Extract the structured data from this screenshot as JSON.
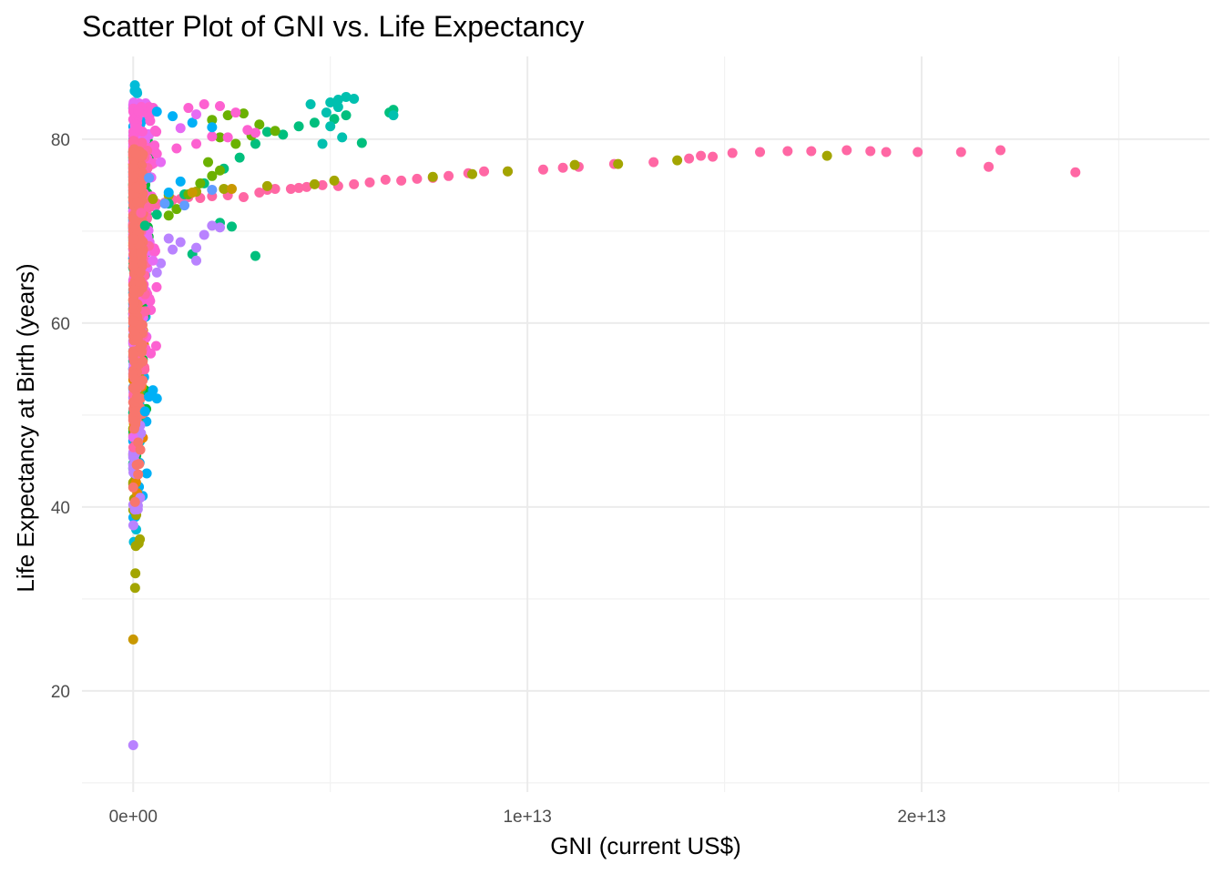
{
  "chart_data": {
    "type": "scatter",
    "title": "Scatter Plot of GNI vs. Life Expectancy",
    "xlabel": "GNI (current US$)",
    "ylabel": "Life Expectancy at Birth (years)",
    "xlim": [
      -1300000000000.0,
      27300000000000.0
    ],
    "ylim": [
      9,
      89
    ],
    "x_ticks": [
      0,
      10000000000000,
      20000000000000
    ],
    "x_tick_labels": [
      "0e+00",
      "1e+13",
      "2e+13"
    ],
    "x_minor_ticks": [
      5000000000000,
      15000000000000,
      25000000000000
    ],
    "y_ticks": [
      20,
      40,
      60,
      80
    ],
    "y_tick_labels": [
      "20",
      "40",
      "60",
      "80"
    ],
    "y_minor_ticks": [
      10,
      30,
      50,
      70
    ],
    "grid": true,
    "legend": "none",
    "colors": [
      "#F8766D",
      "#E58700",
      "#C99800",
      "#A3A500",
      "#6BB100",
      "#00BA38",
      "#00BF7D",
      "#00C0AF",
      "#00BCD8",
      "#00B0F6",
      "#619CFF",
      "#B983FF",
      "#E76BF3",
      "#FD61D1",
      "#FF67A4"
    ],
    "series": [
      {
        "color": "#FF67A4",
        "points": [
          [
            200000000000.0,
            72.0
          ],
          [
            400000000000.0,
            72.6
          ],
          [
            600000000000.0,
            73.0
          ],
          [
            800000000000.0,
            73.1
          ],
          [
            1000000000000.0,
            73.4
          ],
          [
            1200000000000.0,
            73.5
          ],
          [
            1400000000000.0,
            73.7
          ],
          [
            1700000000000.0,
            73.6
          ],
          [
            2000000000000.0,
            73.8
          ],
          [
            2400000000000.0,
            73.9
          ],
          [
            2800000000000.0,
            73.7
          ],
          [
            3200000000000.0,
            74.2
          ],
          [
            3400000000000.0,
            74.5
          ],
          [
            3600000000000.0,
            74.6
          ],
          [
            4000000000000.0,
            74.6
          ],
          [
            4200000000000.0,
            74.7
          ],
          [
            4400000000000.0,
            74.8
          ],
          [
            4800000000000.0,
            75.0
          ],
          [
            5200000000000.0,
            74.9
          ],
          [
            5600000000000.0,
            75.1
          ],
          [
            6000000000000.0,
            75.3
          ],
          [
            6400000000000.0,
            75.6
          ],
          [
            6800000000000.0,
            75.5
          ],
          [
            7200000000000.0,
            75.7
          ],
          [
            7600000000000.0,
            75.8
          ],
          [
            8000000000000.0,
            76.0
          ],
          [
            8500000000000.0,
            76.3
          ],
          [
            8900000000000.0,
            76.5
          ],
          [
            9500000000000.0,
            76.5
          ],
          [
            10400000000000.0,
            76.7
          ],
          [
            10900000000000.0,
            76.9
          ],
          [
            11300000000000.0,
            77.0
          ],
          [
            12200000000000.0,
            77.3
          ],
          [
            13200000000000.0,
            77.5
          ],
          [
            14100000000000.0,
            77.9
          ],
          [
            14400000000000.0,
            78.2
          ],
          [
            14700000000000.0,
            78.1
          ],
          [
            15200000000000.0,
            78.5
          ],
          [
            15900000000000.0,
            78.6
          ],
          [
            16600000000000.0,
            78.7
          ],
          [
            17200000000000.0,
            78.7
          ],
          [
            18100000000000.0,
            78.8
          ],
          [
            18700000000000.0,
            78.7
          ],
          [
            19100000000000.0,
            78.6
          ],
          [
            19900000000000.0,
            78.6
          ],
          [
            21000000000000.0,
            78.6
          ],
          [
            21700000000000.0,
            77.0
          ],
          [
            22000000000000.0,
            78.8
          ],
          [
            23900000000000.0,
            76.4
          ]
        ]
      },
      {
        "color": "#A3A500",
        "points": [
          [
            500000000000.0,
            73.5
          ],
          [
            900000000000.0,
            73.9
          ],
          [
            1600000000000.0,
            74.3
          ],
          [
            2300000000000.0,
            74.6
          ],
          [
            3400000000000.0,
            74.9
          ],
          [
            4600000000000.0,
            75.1
          ],
          [
            5100000000000.0,
            75.5
          ],
          [
            7600000000000.0,
            75.9
          ],
          [
            8600000000000.0,
            76.2
          ],
          [
            9500000000000.0,
            76.5
          ],
          [
            11200000000000.0,
            77.2
          ],
          [
            12300000000000.0,
            77.3
          ],
          [
            13800000000000.0,
            77.7
          ],
          [
            17600000000000.0,
            78.2
          ]
        ]
      },
      {
        "color": "#00BF7D",
        "points": [
          [
            300000000000.0,
            70.6
          ],
          [
            600000000000.0,
            71.8
          ],
          [
            900000000000.0,
            73.0
          ],
          [
            1300000000000.0,
            74.0
          ],
          [
            1800000000000.0,
            75.2
          ],
          [
            2300000000000.0,
            76.8
          ],
          [
            2700000000000.0,
            78.0
          ],
          [
            3100000000000.0,
            79.5
          ],
          [
            3400000000000.0,
            80.8
          ],
          [
            3800000000000.0,
            80.5
          ],
          [
            4200000000000.0,
            81.4
          ],
          [
            4600000000000.0,
            81.8
          ],
          [
            5100000000000.0,
            82.2
          ],
          [
            5400000000000.0,
            82.6
          ],
          [
            5800000000000.0,
            79.6
          ],
          [
            6500000000000.0,
            82.9
          ],
          [
            6600000000000.0,
            83.2
          ],
          [
            2200000000000.0,
            70.9
          ],
          [
            2500000000000.0,
            70.5
          ],
          [
            3100000000000.0,
            67.3
          ],
          [
            1500000000000.0,
            67.5
          ]
        ]
      },
      {
        "color": "#00C0AF",
        "points": [
          [
            4500000000000.0,
            83.8
          ],
          [
            5000000000000.0,
            84.0
          ],
          [
            5200000000000.0,
            84.3
          ],
          [
            5400000000000.0,
            84.6
          ],
          [
            5600000000000.0,
            84.4
          ],
          [
            5200000000000.0,
            83.5
          ],
          [
            4900000000000.0,
            82.9
          ],
          [
            6600000000000.0,
            82.6
          ],
          [
            4800000000000.0,
            79.5
          ],
          [
            5300000000000.0,
            80.2
          ],
          [
            5000000000000.0,
            81.4
          ]
        ]
      },
      {
        "color": "#6BB100",
        "points": [
          [
            2000000000000.0,
            82.1
          ],
          [
            2400000000000.0,
            82.6
          ],
          [
            2800000000000.0,
            82.8
          ],
          [
            3200000000000.0,
            81.6
          ],
          [
            3600000000000.0,
            80.9
          ],
          [
            3000000000000.0,
            80.4
          ],
          [
            2200000000000.0,
            80.2
          ],
          [
            2600000000000.0,
            79.5
          ],
          [
            1900000000000.0,
            77.5
          ],
          [
            2200000000000.0,
            76.6
          ],
          [
            1700000000000.0,
            75.2
          ],
          [
            2000000000000.0,
            76.0
          ],
          [
            1400000000000.0,
            74.0
          ],
          [
            1100000000000.0,
            72.4
          ],
          [
            900000000000.0,
            71.7
          ]
        ]
      },
      {
        "color": "#FD61D1",
        "points": [
          [
            1400000000000.0,
            83.4
          ],
          [
            1800000000000.0,
            83.8
          ],
          [
            2200000000000.0,
            83.6
          ],
          [
            2600000000000.0,
            82.9
          ],
          [
            2900000000000.0,
            81.0
          ],
          [
            3100000000000.0,
            80.7
          ],
          [
            2400000000000.0,
            80.2
          ],
          [
            2000000000000.0,
            80.3
          ],
          [
            1600000000000.0,
            79.5
          ],
          [
            1100000000000.0,
            79.0
          ],
          [
            600000000000.0,
            78.4
          ]
        ]
      },
      {
        "color": "#00B0F6",
        "points": [
          [
            600000000000.0,
            83.0
          ],
          [
            1000000000000.0,
            82.5
          ],
          [
            1500000000000.0,
            81.8
          ],
          [
            2000000000000.0,
            81.3
          ],
          [
            1200000000000.0,
            75.4
          ],
          [
            900000000000.0,
            74.2
          ],
          [
            400000000000.0,
            52.0
          ],
          [
            500000000000.0,
            52.7
          ],
          [
            600000000000.0,
            51.8
          ],
          [
            300000000000.0,
            50.4
          ]
        ]
      },
      {
        "color": "#619CFF",
        "points": [
          [
            400000000000.0,
            75.8
          ],
          [
            800000000000.0,
            73.0
          ],
          [
            1300000000000.0,
            72.8
          ],
          [
            2000000000000.0,
            74.5
          ]
        ]
      },
      {
        "color": "#B983FF",
        "points": [
          [
            2000000000000.0,
            70.6
          ],
          [
            2200000000000.0,
            70.4
          ],
          [
            1800000000000.0,
            69.6
          ],
          [
            1600000000000.0,
            68.2
          ],
          [
            1200000000000.0,
            68.8
          ],
          [
            900000000000.0,
            69.2
          ],
          [
            700000000000.0,
            66.5
          ],
          [
            1000000000000.0,
            68.0
          ],
          [
            1600000000000.0,
            66.8
          ],
          [
            600000000000.0,
            65.5
          ],
          [
            0,
            14.1
          ]
        ]
      },
      {
        "color": "#E76BF3",
        "points": [
          [
            1600000000000.0,
            82.7
          ],
          [
            1200000000000.0,
            81.2
          ],
          [
            700000000000.0,
            77.5
          ],
          [
            500000000000.0,
            66.8
          ]
        ]
      },
      {
        "color": "#C99800",
        "points": [
          [
            0,
            25.6
          ],
          [
            1500000000000.0,
            74.2
          ],
          [
            2500000000000.0,
            74.6
          ]
        ]
      },
      {
        "color": "#00BCD8",
        "points": [
          [
            100000000000.0,
            85.0
          ]
        ]
      }
    ],
    "dense_column": [
      {
        "color": "#00BCD8",
        "x": [
          0,
          200000000000.0
        ],
        "y": [
          31,
          86
        ],
        "count": 90
      },
      {
        "color": "#00B0F6",
        "x": [
          0,
          350000000000.0
        ],
        "y": [
          33,
          84
        ],
        "count": 120
      },
      {
        "color": "#619CFF",
        "x": [
          0,
          150000000000.0
        ],
        "y": [
          55,
          76
        ],
        "count": 60
      },
      {
        "color": "#00BA38",
        "x": [
          0,
          400000000000.0
        ],
        "y": [
          44,
          80
        ],
        "count": 120
      },
      {
        "color": "#00BF7D",
        "x": [
          0,
          300000000000.0
        ],
        "y": [
          40,
          78
        ],
        "count": 80
      },
      {
        "color": "#A3A500",
        "x": [
          0,
          200000000000.0
        ],
        "y": [
          29,
          70
        ],
        "count": 60
      },
      {
        "color": "#E58700",
        "x": [
          0,
          300000000000.0
        ],
        "y": [
          35,
          80
        ],
        "count": 70
      },
      {
        "color": "#B983FF",
        "x": [
          0,
          200000000000.0
        ],
        "y": [
          35,
          60
        ],
        "count": 60
      },
      {
        "color": "#E76BF3",
        "x": [
          0,
          500000000000.0
        ],
        "y": [
          45,
          84
        ],
        "count": 110
      },
      {
        "color": "#FD61D1",
        "x": [
          0,
          600000000000.0
        ],
        "y": [
          50,
          84
        ],
        "count": 120
      },
      {
        "color": "#FF67A4",
        "x": [
          0,
          400000000000.0
        ],
        "y": [
          45,
          80
        ],
        "count": 100
      },
      {
        "color": "#F8766D",
        "x": [
          0,
          250000000000.0
        ],
        "y": [
          40,
          79
        ],
        "count": 260
      }
    ]
  }
}
